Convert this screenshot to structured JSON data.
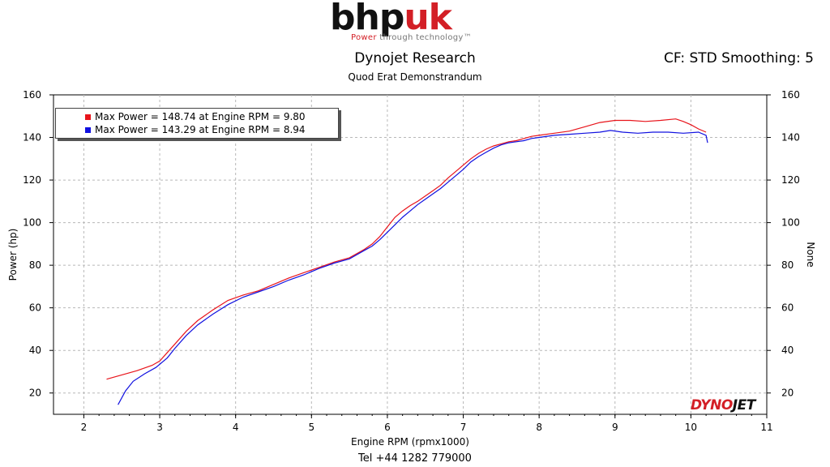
{
  "logo": {
    "brand_part1": "bhp",
    "brand_part2": "uk",
    "tag_part1": "Power",
    "tag_part2": "through",
    "tag_part3": "technology",
    "tag_mark": "™"
  },
  "header": {
    "title": "Dynojet Research",
    "subtitle": "Quod Erat Demonstrandum",
    "cf_text": "CF: STD Smoothing: 5"
  },
  "footer": {
    "phone": "Tel +44 1282 779000"
  },
  "watermark": {
    "part1": "DYNO",
    "part2": "JET"
  },
  "chart_data": {
    "type": "line",
    "xlabel": "Engine RPM (rpmx1000)",
    "ylabel": "Power (hp)",
    "y2label": "None",
    "xlim": [
      1.6,
      11
    ],
    "ylim": [
      10,
      160
    ],
    "xticks": [
      2,
      3,
      4,
      5,
      6,
      7,
      8,
      9,
      10,
      11
    ],
    "yticks": [
      20,
      40,
      60,
      80,
      100,
      120,
      140,
      160
    ],
    "grid": true,
    "legend_position": "top-left",
    "legend": [
      {
        "text": "Max Power = 148.74 at Engine RPM = 9.80",
        "color": "#e8141b"
      },
      {
        "text": "Max Power = 143.29 at Engine RPM = 8.94",
        "color": "#1010e0"
      }
    ],
    "series": [
      {
        "color": "#e8141b",
        "x": [
          2.3,
          2.5,
          2.7,
          2.9,
          3.0,
          3.1,
          3.2,
          3.35,
          3.5,
          3.7,
          3.9,
          4.1,
          4.3,
          4.5,
          4.7,
          4.9,
          5.1,
          5.3,
          5.5,
          5.6,
          5.7,
          5.8,
          5.9,
          6.0,
          6.1,
          6.2,
          6.3,
          6.4,
          6.5,
          6.6,
          6.7,
          6.8,
          6.9,
          7.0,
          7.1,
          7.2,
          7.3,
          7.4,
          7.5,
          7.6,
          7.7,
          7.8,
          7.9,
          8.0,
          8.2,
          8.4,
          8.6,
          8.8,
          9.0,
          9.2,
          9.4,
          9.6,
          9.8,
          9.9,
          10.0,
          10.1,
          10.2
        ],
        "y": [
          26.5,
          28.5,
          30.5,
          33,
          35,
          39,
          43,
          49,
          54,
          59,
          63.5,
          66,
          68,
          71,
          74,
          76.5,
          79,
          81.5,
          83.5,
          85.5,
          87.5,
          90,
          93.5,
          98,
          102.5,
          105.5,
          108,
          110,
          112.5,
          115,
          117.5,
          121,
          124,
          127,
          130,
          132.5,
          134.5,
          136,
          137,
          138,
          138.5,
          139.5,
          140.5,
          141,
          142,
          143,
          145,
          147,
          148,
          148,
          147.5,
          148,
          148.7,
          147.5,
          146,
          144,
          142.5
        ]
      },
      {
        "color": "#1010e0",
        "x": [
          2.45,
          2.55,
          2.65,
          2.8,
          2.95,
          3.1,
          3.2,
          3.35,
          3.5,
          3.7,
          3.9,
          4.1,
          4.3,
          4.5,
          4.7,
          4.9,
          5.1,
          5.3,
          5.5,
          5.6,
          5.7,
          5.8,
          5.9,
          6.0,
          6.1,
          6.2,
          6.3,
          6.4,
          6.5,
          6.6,
          6.7,
          6.8,
          6.9,
          7.0,
          7.1,
          7.2,
          7.3,
          7.4,
          7.5,
          7.6,
          7.7,
          7.8,
          7.9,
          8.0,
          8.2,
          8.4,
          8.6,
          8.8,
          8.94,
          9.1,
          9.3,
          9.5,
          9.7,
          9.9,
          10.1,
          10.2,
          10.22
        ],
        "y": [
          14.5,
          21,
          25.5,
          29,
          32,
          36.5,
          41,
          47,
          52,
          57,
          61.5,
          65,
          67.5,
          70,
          73,
          75.5,
          78.5,
          81,
          83,
          85,
          87,
          89,
          92,
          95.5,
          99,
          102.5,
          105.5,
          108.5,
          111,
          113.5,
          116,
          119,
          122,
          125,
          128.5,
          131,
          133,
          135,
          136.5,
          137.5,
          138,
          138.5,
          139.5,
          140,
          141,
          141.5,
          142,
          142.5,
          143.3,
          142.5,
          142,
          142.5,
          142.5,
          142,
          142.5,
          141,
          137.5
        ]
      }
    ]
  }
}
